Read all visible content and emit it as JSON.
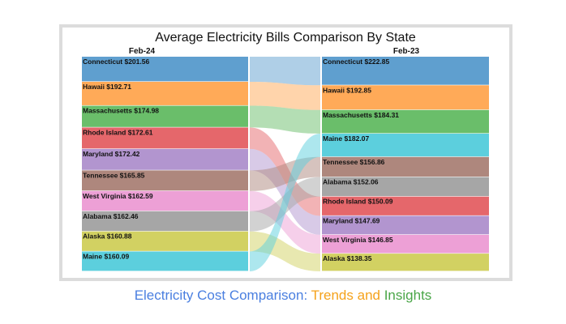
{
  "chart_data": {
    "type": "sankey",
    "title": "Average Electricity Bills Comparison By State",
    "left_label": "Feb-24",
    "right_label": "Feb-23",
    "left": [
      {
        "state": "Connecticut",
        "value": 201.56,
        "label": "Connecticut $201.56"
      },
      {
        "state": "Hawaii",
        "value": 192.71,
        "label": "Hawaii $192.71"
      },
      {
        "state": "Massachusetts",
        "value": 174.98,
        "label": "Massachusetts $174.98"
      },
      {
        "state": "Rhode Island",
        "value": 172.61,
        "label": "Rhode Island $172.61"
      },
      {
        "state": "Maryland",
        "value": 172.42,
        "label": "Maryland $172.42"
      },
      {
        "state": "Tennessee",
        "value": 165.85,
        "label": "Tennessee $165.85"
      },
      {
        "state": "West Virginia",
        "value": 162.59,
        "label": "West Virginia $162.59"
      },
      {
        "state": "Alabama",
        "value": 162.46,
        "label": "Alabama $162.46"
      },
      {
        "state": "Alaska",
        "value": 160.88,
        "label": "Alaska $160.88"
      },
      {
        "state": "Maine",
        "value": 160.09,
        "label": "Maine $160.09"
      }
    ],
    "right": [
      {
        "state": "Connecticut",
        "value": 222.85,
        "label": "Connecticut $222.85"
      },
      {
        "state": "Hawaii",
        "value": 192.85,
        "label": "Hawaii $192.85"
      },
      {
        "state": "Massachusetts",
        "value": 184.31,
        "label": "Massachusetts $184.31"
      },
      {
        "state": "Maine",
        "value": 182.07,
        "label": "Maine $182.07"
      },
      {
        "state": "Tennessee",
        "value": 156.86,
        "label": "Tennessee $156.86"
      },
      {
        "state": "Alabama",
        "value": 152.06,
        "label": "Alabama $152.06"
      },
      {
        "state": "Rhode Island",
        "value": 150.09,
        "label": "Rhode Island $150.09"
      },
      {
        "state": "Maryland",
        "value": 147.69,
        "label": "Maryland $147.69"
      },
      {
        "state": "West Virginia",
        "value": 146.85,
        "label": "West Virginia $146.85"
      },
      {
        "state": "Alaska",
        "value": 138.35,
        "label": "Alaska $138.35"
      }
    ],
    "colors": {
      "Connecticut": "#5f9fcf",
      "Hawaii": "#ffaa58",
      "Massachusetts": "#6abe6a",
      "Rhode Island": "#e5676b",
      "Maryland": "#b295cf",
      "Tennessee": "#ae877d",
      "West Virginia": "#eda0d6",
      "Alabama": "#a6a6a6",
      "Alaska": "#d2d162",
      "Maine": "#5ccfdd"
    }
  },
  "caption": {
    "part1": "Electricity Cost Comparison: ",
    "part2": "Trends and ",
    "part3": "Insights"
  }
}
